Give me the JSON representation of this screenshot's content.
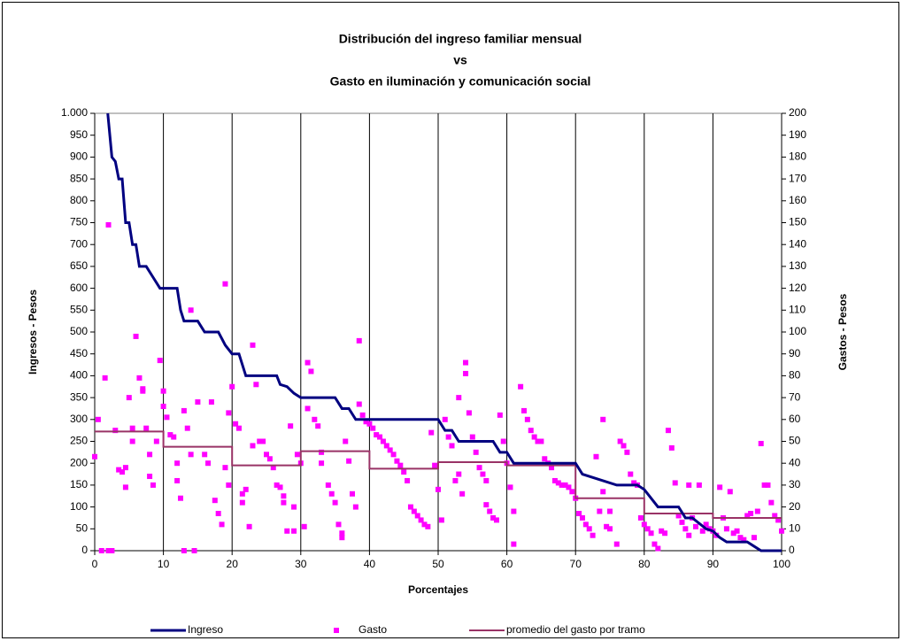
{
  "chart_data": {
    "type": "line",
    "title": [
      "Distribución del ingreso familiar mensual",
      "vs",
      "Gasto en iluminación y comunicación social"
    ],
    "x_label": "Porcentajes",
    "y_label": "Ingresos - Pesos",
    "y2_label": "Gastos - Pesos",
    "xlim": [
      0,
      100
    ],
    "xticks": [
      0,
      10,
      20,
      30,
      40,
      50,
      60,
      70,
      80,
      90,
      100
    ],
    "ylim": [
      0,
      1000
    ],
    "yticks": [
      0,
      50,
      100,
      150,
      200,
      250,
      300,
      350,
      400,
      450,
      500,
      550,
      600,
      650,
      700,
      750,
      800,
      850,
      900,
      950,
      {
        "value": 1000,
        "label": "1.000"
      }
    ],
    "y2lim": [
      0,
      200
    ],
    "y2ticks": [
      0,
      10,
      20,
      30,
      40,
      50,
      60,
      70,
      80,
      90,
      100,
      110,
      120,
      130,
      140,
      150,
      160,
      170,
      180,
      190,
      200
    ],
    "grid": "x",
    "legend": "bottom",
    "series": [
      {
        "name": "Ingreso",
        "type": "line",
        "color": "#000080",
        "x": [
          1.9,
          2.5,
          3,
          3.5,
          4,
          4.5,
          5,
          5.5,
          6,
          6.5,
          7.5,
          8.5,
          9.5,
          12,
          12.5,
          13,
          15,
          16,
          18,
          19,
          20,
          21,
          22,
          26.5,
          27,
          28,
          29,
          30,
          35,
          36,
          37,
          38,
          50,
          51,
          52,
          53,
          58,
          59,
          60,
          61,
          70,
          71,
          76,
          79,
          80,
          82,
          85,
          86,
          87,
          89,
          90,
          91,
          92,
          95,
          96,
          97,
          100
        ],
        "values": [
          1000,
          900,
          890,
          850,
          850,
          750,
          750,
          700,
          700,
          650,
          650,
          625,
          600,
          600,
          550,
          525,
          525,
          500,
          500,
          470,
          450,
          450,
          400,
          400,
          380,
          375,
          360,
          350,
          350,
          325,
          325,
          300,
          300,
          275,
          275,
          250,
          250,
          225,
          225,
          200,
          200,
          175,
          150,
          150,
          140,
          100,
          100,
          75,
          75,
          50,
          45,
          30,
          20,
          20,
          10,
          0,
          0
        ]
      },
      {
        "name": "Gasto",
        "type": "scatter",
        "axis": "y2",
        "color": "#ff00ff",
        "x": [
          0,
          0.5,
          1,
          1.5,
          2,
          2,
          2.5,
          3,
          3.5,
          4,
          4.5,
          4.5,
          5,
          5.5,
          5.5,
          6,
          6.5,
          7,
          7,
          7.5,
          8,
          8,
          8.5,
          9,
          9.5,
          10,
          10,
          10.5,
          11,
          11.5,
          12,
          12,
          12.5,
          13,
          13,
          13.5,
          14,
          14,
          14.5,
          15,
          16,
          16.5,
          17,
          17.5,
          18,
          18.5,
          19,
          19,
          19.5,
          19.5,
          20,
          20.5,
          21,
          21.5,
          21.5,
          22,
          22.5,
          23,
          23,
          23.5,
          24,
          24.5,
          25,
          25.5,
          26,
          26.5,
          27,
          27.5,
          27.5,
          28,
          28.5,
          29,
          29,
          29.5,
          30,
          30.5,
          31,
          31,
          31.5,
          32,
          32.5,
          33,
          33,
          34,
          34.5,
          35,
          35.5,
          36,
          36,
          36.5,
          37,
          37.5,
          38,
          38.5,
          38.5,
          39,
          39.5,
          40,
          40.5,
          41,
          41.5,
          42,
          42.5,
          43,
          43.5,
          44,
          44.5,
          45,
          45.5,
          46,
          46.5,
          47,
          47.5,
          48,
          48.5,
          49,
          49.5,
          50,
          50.5,
          51,
          51.5,
          52,
          52.5,
          53,
          53,
          53.5,
          54,
          54,
          54.5,
          55,
          55.5,
          56,
          56.5,
          57,
          57,
          57.5,
          58,
          58.5,
          59,
          59.5,
          60,
          60.5,
          61,
          61,
          62,
          62.5,
          63,
          63.5,
          64,
          64.5,
          65,
          65.5,
          66,
          66.5,
          67,
          67.5,
          68,
          68.5,
          69,
          69.5,
          70,
          70.5,
          71,
          71.5,
          72,
          72.5,
          73,
          73.5,
          74,
          74,
          74.5,
          75,
          75,
          76,
          76.5,
          77,
          77.5,
          78,
          78.5,
          79,
          79.5,
          80,
          80.5,
          81,
          81.5,
          82,
          82.5,
          83,
          83.5,
          84,
          84.5,
          85,
          85.5,
          86,
          86.5,
          86.5,
          87,
          87.5,
          88,
          88.5,
          89,
          89.5,
          90,
          90.5,
          91,
          91.5,
          92,
          92.5,
          93,
          93.5,
          94,
          94.5,
          95,
          95.5,
          96,
          96.5,
          97,
          97.5,
          98,
          98.5,
          99,
          99.5,
          100
        ],
        "values": [
          43,
          60,
          0,
          79,
          149,
          0,
          0,
          55,
          37,
          36,
          29,
          38,
          70,
          50,
          56,
          98,
          79,
          73,
          74,
          56,
          44,
          34,
          30,
          50,
          87,
          73,
          66,
          61,
          53,
          52,
          40,
          32,
          24,
          0,
          64,
          56,
          110,
          44,
          0,
          68,
          44,
          40,
          68,
          23,
          17,
          12,
          122,
          38,
          30,
          63,
          75,
          58,
          56,
          26,
          22,
          28,
          11,
          48,
          94,
          76,
          50,
          50,
          44,
          42,
          38,
          30,
          29,
          25,
          22,
          9,
          57,
          20,
          9,
          44,
          40,
          11,
          86,
          65,
          82,
          60,
          57,
          45,
          40,
          30,
          26,
          22,
          12,
          8,
          6,
          50,
          41,
          26,
          20,
          96,
          67,
          62,
          59,
          58,
          56,
          53,
          52,
          50,
          48,
          46,
          44,
          41,
          39,
          36,
          32,
          20,
          18,
          16,
          14,
          12,
          11,
          54,
          39,
          28,
          14,
          60,
          52,
          48,
          32,
          35,
          70,
          26,
          86,
          81,
          63,
          52,
          45,
          38,
          35,
          32,
          21,
          18,
          15,
          14,
          62,
          50,
          40,
          29,
          18,
          3,
          75,
          64,
          60,
          55,
          52,
          50,
          50,
          42,
          40,
          38,
          32,
          31,
          30,
          30,
          29,
          27,
          24,
          17,
          15,
          12,
          10,
          7,
          43,
          18,
          60,
          27,
          11,
          10,
          18,
          3,
          50,
          48,
          45,
          35,
          31,
          30,
          15,
          12,
          10,
          8,
          3,
          1,
          9,
          8,
          55,
          47,
          31,
          16,
          13,
          10,
          7,
          30,
          15,
          11,
          30,
          9,
          12,
          10,
          9,
          7,
          29,
          15,
          10,
          27,
          8,
          9,
          6,
          5,
          16,
          17,
          6,
          18,
          49,
          30,
          30,
          22,
          16,
          14,
          9
        ]
      },
      {
        "name": "promedio del gasto por tramo",
        "type": "line",
        "axis": "y2",
        "color": "#993366",
        "x": [
          0,
          10,
          10,
          20,
          20,
          30,
          30,
          40,
          40,
          50,
          50,
          60,
          60,
          70,
          70,
          80,
          80,
          90,
          90,
          100
        ],
        "values": [
          54.5,
          54.5,
          47.5,
          47.5,
          39,
          39,
          45.5,
          45.5,
          37.5,
          37.5,
          40.5,
          40.5,
          39,
          39,
          24,
          24,
          17,
          17,
          15,
          15
        ]
      }
    ]
  }
}
